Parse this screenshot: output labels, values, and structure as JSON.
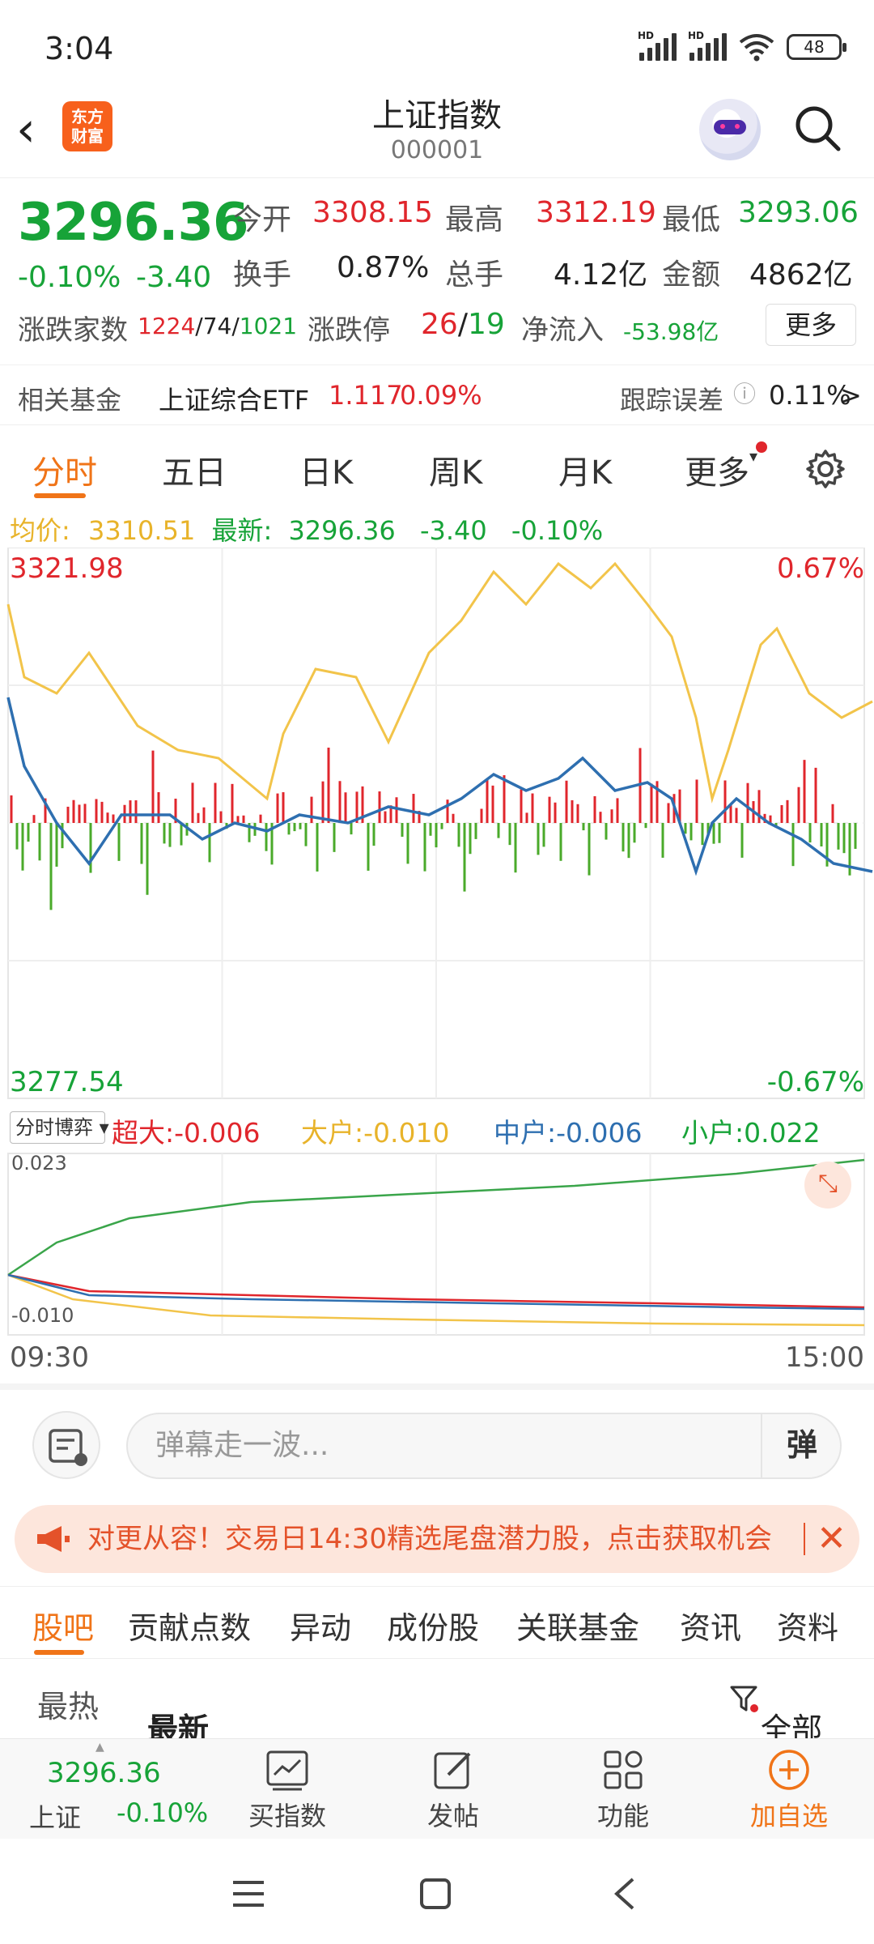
{
  "status_bar": {
    "time": "3:04",
    "battery": "48",
    "net1": "HD",
    "net2": "HD"
  },
  "header": {
    "title": "上证指数",
    "code": "000001",
    "logo_text": "东方\n财富"
  },
  "quote": {
    "price": "3296.36",
    "change_pct": "-0.10%",
    "change": "-3.40",
    "open_label": "今开",
    "open": "3308.15",
    "high_label": "最高",
    "high": "3312.19",
    "low_label": "最低",
    "low": "3293.06",
    "turnover_label": "换手",
    "turnover": "0.87%",
    "volume_label": "总手",
    "volume": "4.12亿",
    "amount_label": "金额",
    "amount": "4862亿",
    "breadth_label": "涨跌家数",
    "breadth_up": "1224",
    "breadth_flat": "74",
    "breadth_down": "1021",
    "limit_label": "涨跌停",
    "limit_up": "26",
    "limit_down": "19",
    "netflow_label": "净流入",
    "netflow": "-53.98亿",
    "more": "更多"
  },
  "fund": {
    "label": "相关基金",
    "name": "上证综合ETF",
    "price": "1.117",
    "pct": "0.09%",
    "track_label": "跟踪误差",
    "track": "0.11%"
  },
  "tabs": [
    "分时",
    "五日",
    "日K",
    "周K",
    "月K",
    "更多"
  ],
  "avg_bar": {
    "avg_label": "均价:",
    "avg": "3310.51",
    "last_label": "最新:",
    "last": "3296.36",
    "chg": "-3.40",
    "pct": "-0.10%"
  },
  "chart_data": [
    {
      "type": "line",
      "ylim": [
        3277.54,
        3321.98
      ],
      "y_labels": {
        "top_left": "3321.98",
        "bottom_left": "3277.54",
        "top_right": "0.67%",
        "bottom_right": "-0.67%"
      },
      "x_range": [
        "09:30",
        "15:00"
      ],
      "series": [],
      "colors": {
        "price": "#2e6fb0",
        "avg": "#f2c44a",
        "vol_up": "#e0262c",
        "vol_down": "#4aaa2a"
      }
    },
    {
      "type": "line",
      "ylim": [
        -0.01,
        0.023
      ],
      "y_labels": {
        "top": "0.023",
        "bottom": "-0.010"
      },
      "series": [
        {
          "name": "超大",
          "last": -0.006,
          "color": "#e0262c"
        },
        {
          "name": "大户",
          "last": -0.01,
          "color": "#f2c44a"
        },
        {
          "name": "中户",
          "last": -0.006,
          "color": "#2e6fb0"
        },
        {
          "name": "小户",
          "last": 0.022,
          "color": "#3aa54a"
        }
      ]
    }
  ],
  "flow_legend": {
    "selector": "分时博弈",
    "super": "超大:-0.006",
    "large": "大户:-0.010",
    "mid": "中户:-0.006",
    "small": "小户:0.022"
  },
  "time_axis": {
    "start": "09:30",
    "end": "15:00"
  },
  "danmu": {
    "placeholder": "弹幕走一波...",
    "button": "弹"
  },
  "banner": {
    "text": "对更从容！交易日14:30精选尾盘潜力股，点击获取机会"
  },
  "bottom_tabs": [
    "股吧",
    "贡献点数",
    "异动",
    "成份股",
    "关联基金",
    "资讯",
    "资料"
  ],
  "sort": {
    "hot": "最热",
    "latest": "最新",
    "filter": "全部"
  },
  "bottom_nav": {
    "index_name": "上证",
    "index_price": "3296.36",
    "index_pct": "-0.10%",
    "buy": "买指数",
    "post": "发帖",
    "func": "功能",
    "add": "加自选"
  }
}
